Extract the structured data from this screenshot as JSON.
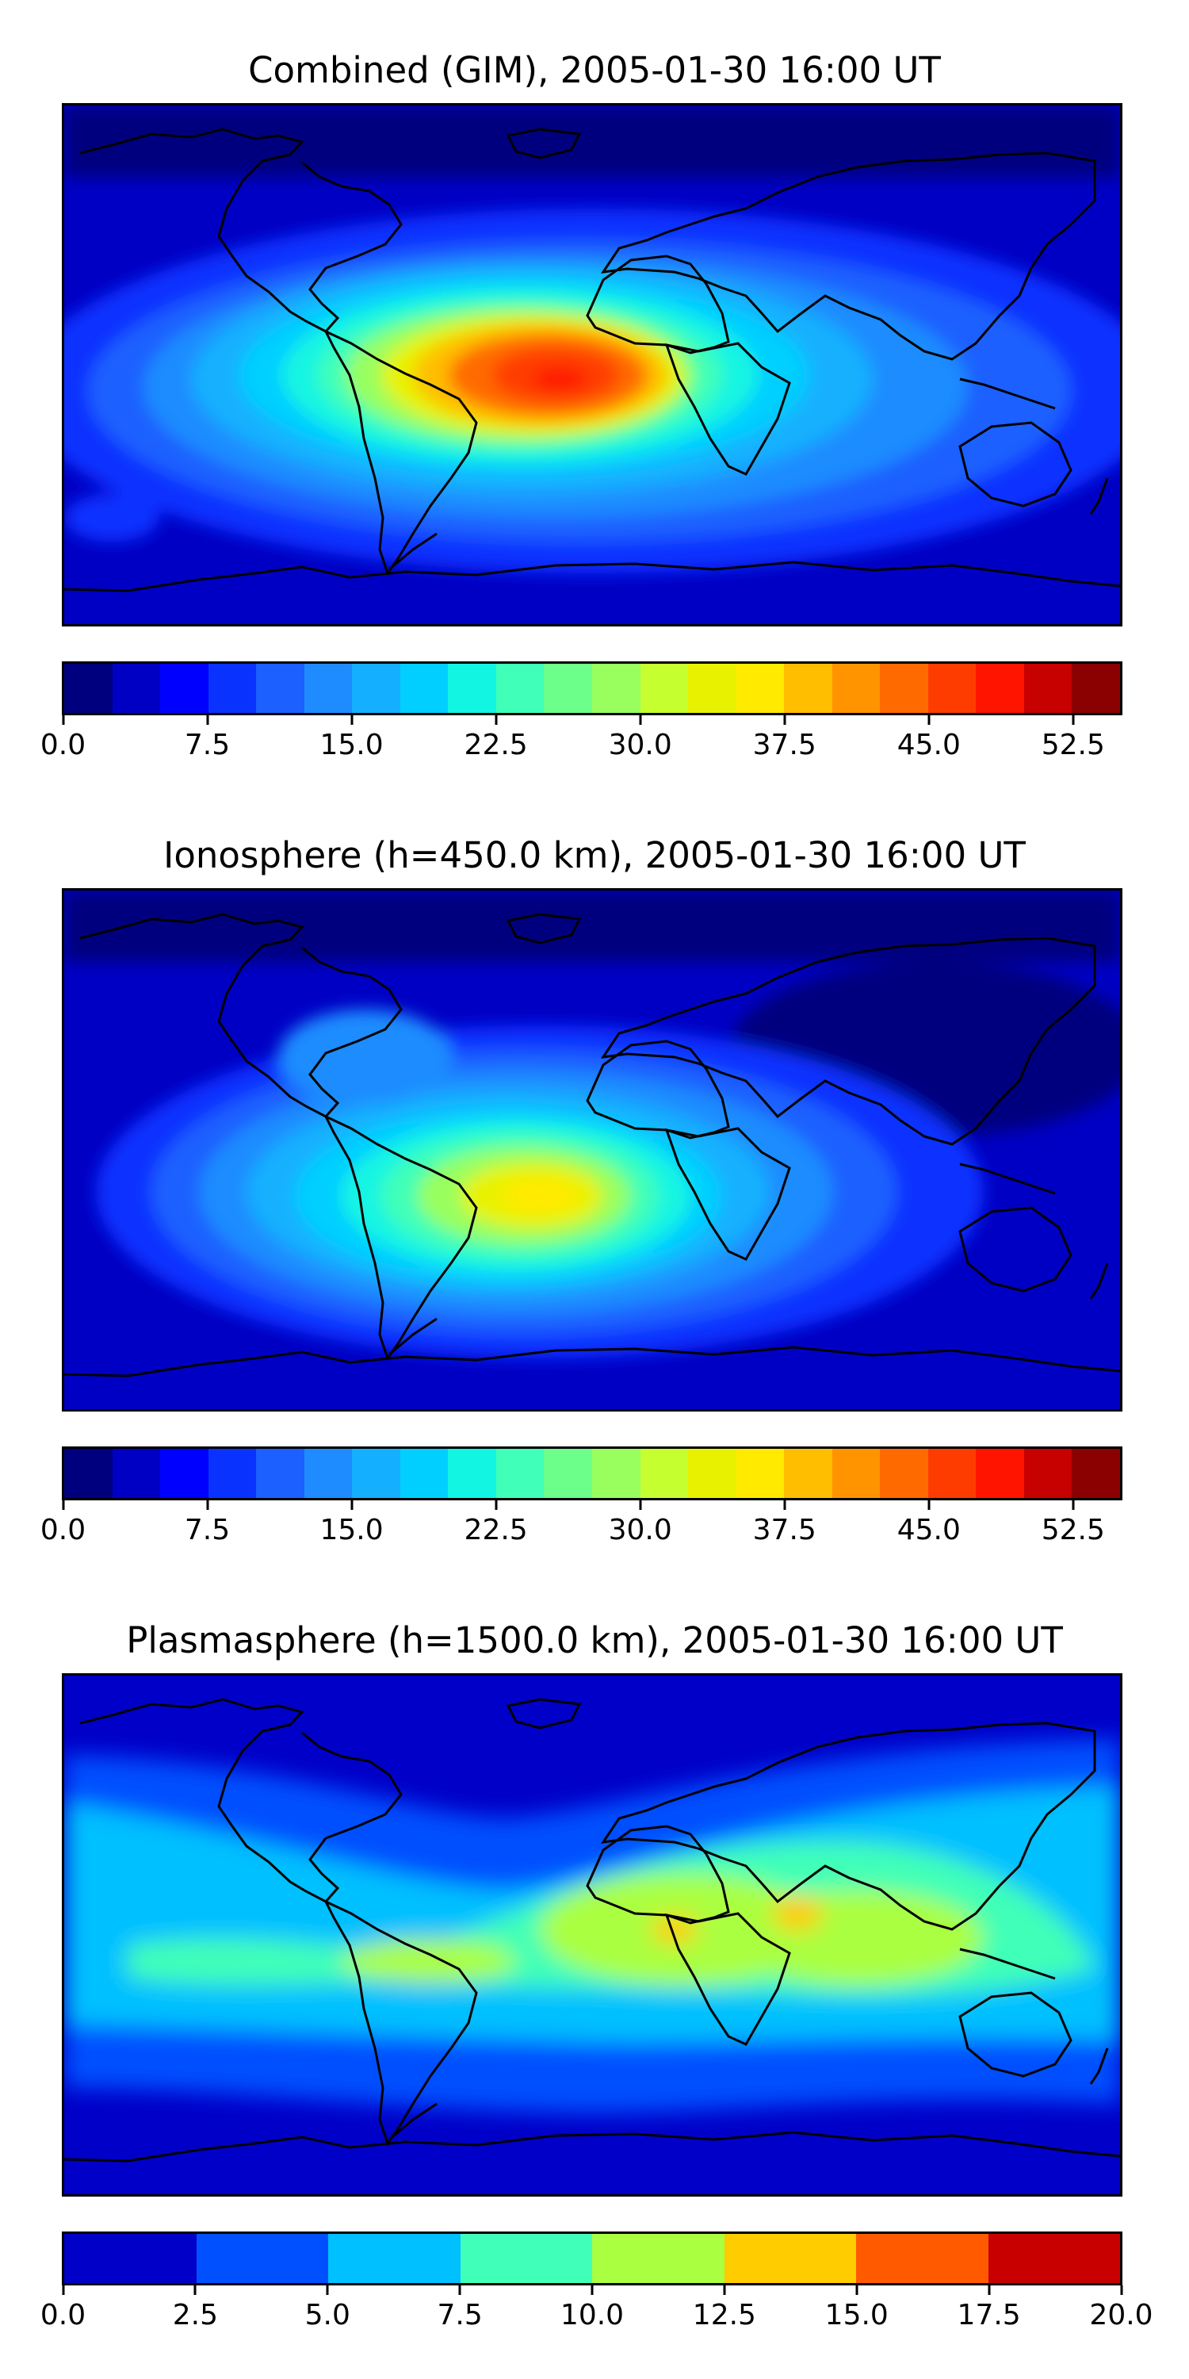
{
  "figure": {
    "maps": [
      {
        "id": "combined",
        "title": "Combined (GIM), 2005-01-30 16:00 UT",
        "colorbar": {
          "ticks": [
            "0.0",
            "7.5",
            "15.0",
            "22.5",
            "30.0",
            "37.5",
            "45.0",
            "52.5"
          ],
          "colors": [
            "#00007f",
            "#0000c4",
            "#0000ff",
            "#0a32ff",
            "#1c60ff",
            "#1e8cff",
            "#14b0ff",
            "#00cfff",
            "#12f5e2",
            "#40ffb8",
            "#6cff8a",
            "#98ff5e",
            "#c6ff30",
            "#e8f200",
            "#ffea00",
            "#ffbe00",
            "#ff9400",
            "#ff6a00",
            "#ff3c00",
            "#ff1400",
            "#c70000",
            "#8b0000"
          ],
          "value_range": [
            0,
            55
          ],
          "step": 2.5
        }
      },
      {
        "id": "ionosphere",
        "title": "Ionosphere  (h=450.0 km), 2005-01-30 16:00 UT",
        "colorbar": {
          "ticks": [
            "0.0",
            "7.5",
            "15.0",
            "22.5",
            "30.0",
            "37.5",
            "45.0",
            "52.5"
          ],
          "colors": [
            "#00007f",
            "#0000c4",
            "#0000ff",
            "#0a32ff",
            "#1c60ff",
            "#1e8cff",
            "#14b0ff",
            "#00cfff",
            "#12f5e2",
            "#40ffb8",
            "#6cff8a",
            "#98ff5e",
            "#c6ff30",
            "#e8f200",
            "#ffea00",
            "#ffbe00",
            "#ff9400",
            "#ff6a00",
            "#ff3c00",
            "#ff1400",
            "#c70000",
            "#8b0000"
          ],
          "value_range": [
            0,
            55
          ],
          "step": 2.5
        }
      },
      {
        "id": "plasmasphere",
        "title": "Plasmasphere (h=1500.0 km), 2005-01-30 16:00 UT",
        "colorbar": {
          "ticks": [
            "0.0",
            "2.5",
            "5.0",
            "7.5",
            "10.0",
            "12.5",
            "15.0",
            "17.5",
            "20.0"
          ],
          "colors": [
            "#0000c8",
            "#0050ff",
            "#00c0ff",
            "#40ffb8",
            "#aaff40",
            "#ffcc00",
            "#ff5a00",
            "#c80000"
          ],
          "value_range": [
            0,
            20
          ],
          "step": 2.5
        }
      }
    ]
  }
}
